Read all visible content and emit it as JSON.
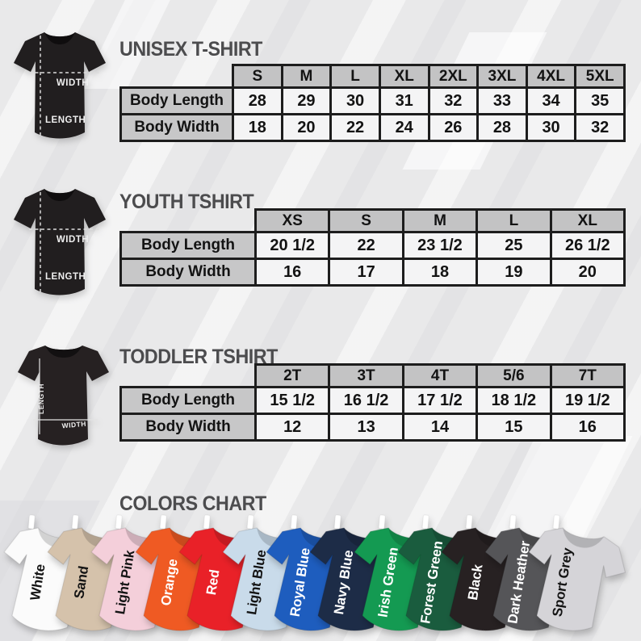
{
  "sections": [
    {
      "title": "UNISEX T-SHIRT",
      "diagram": {
        "width_label": "WIDTH",
        "length_label": "LENGTH"
      },
      "table": {
        "col_headers": [
          "S",
          "M",
          "L",
          "XL",
          "2XL",
          "3XL",
          "4XL",
          "5XL"
        ],
        "rows": [
          {
            "label": "Body Length",
            "values": [
              "28",
              "29",
              "30",
              "31",
              "32",
              "33",
              "34",
              "35"
            ]
          },
          {
            "label": "Body Width",
            "values": [
              "18",
              "20",
              "22",
              "24",
              "26",
              "28",
              "30",
              "32"
            ]
          }
        ]
      }
    },
    {
      "title": "YOUTH TSHIRT",
      "diagram": {
        "width_label": "WIDTH",
        "length_label": "LENGTH"
      },
      "table": {
        "col_headers": [
          "XS",
          "S",
          "M",
          "L",
          "XL"
        ],
        "rows": [
          {
            "label": "Body Length",
            "values": [
              "20 1/2",
              "22",
              "23 1/2",
              "25",
              "26 1/2"
            ]
          },
          {
            "label": "Body Width",
            "values": [
              "16",
              "17",
              "18",
              "19",
              "20"
            ]
          }
        ]
      }
    },
    {
      "title": "TODDLER TSHIRT",
      "diagram": {
        "width_label": "WIDTH",
        "length_label": "LENGTH"
      },
      "table": {
        "col_headers": [
          "2T",
          "3T",
          "4T",
          "5/6",
          "7T"
        ],
        "rows": [
          {
            "label": "Body Length",
            "values": [
              "15 1/2",
              "16 1/2",
              "17 1/2",
              "18 1/2",
              "19 1/2"
            ]
          },
          {
            "label": "Body Width",
            "values": [
              "12",
              "13",
              "14",
              "15",
              "16"
            ]
          }
        ]
      }
    }
  ],
  "colors_chart": {
    "title": "COLORS CHART",
    "shirts": [
      {
        "name": "White",
        "hex": "#fbfbfb",
        "label_color": "#141414"
      },
      {
        "name": "Sand",
        "hex": "#d5c2ab",
        "label_color": "#141414"
      },
      {
        "name": "Light Pink",
        "hex": "#f4cfda",
        "label_color": "#141414"
      },
      {
        "name": "Orange",
        "hex": "#ef5a23",
        "label_color": "#ffffff"
      },
      {
        "name": "Red",
        "hex": "#e92128",
        "label_color": "#ffffff"
      },
      {
        "name": "Light Blue",
        "hex": "#c9dbea",
        "label_color": "#141414"
      },
      {
        "name": "Royal Blue",
        "hex": "#1e5dbe",
        "label_color": "#ffffff"
      },
      {
        "name": "Navy Blue",
        "hex": "#1d2c47",
        "label_color": "#ffffff"
      },
      {
        "name": "Irish Green",
        "hex": "#149a52",
        "label_color": "#ffffff"
      },
      {
        "name": "Forest Green",
        "hex": "#1a5c3e",
        "label_color": "#ffffff"
      },
      {
        "name": "Black",
        "hex": "#272122",
        "label_color": "#ffffff"
      },
      {
        "name": "Dark Heather",
        "hex": "#555558",
        "label_color": "#ffffff"
      },
      {
        "name": "Sport Grey",
        "hex": "#d5d4d8",
        "label_color": "#141414"
      }
    ]
  },
  "palette": {
    "background": "#e9e9ea",
    "title_color": "#4c4c4e",
    "table_border": "#1d1d1d",
    "table_header_bg": "#c3c3c4",
    "table_cell_bg": "#f4f4f5",
    "diagram_shirt": "#211e1f"
  }
}
